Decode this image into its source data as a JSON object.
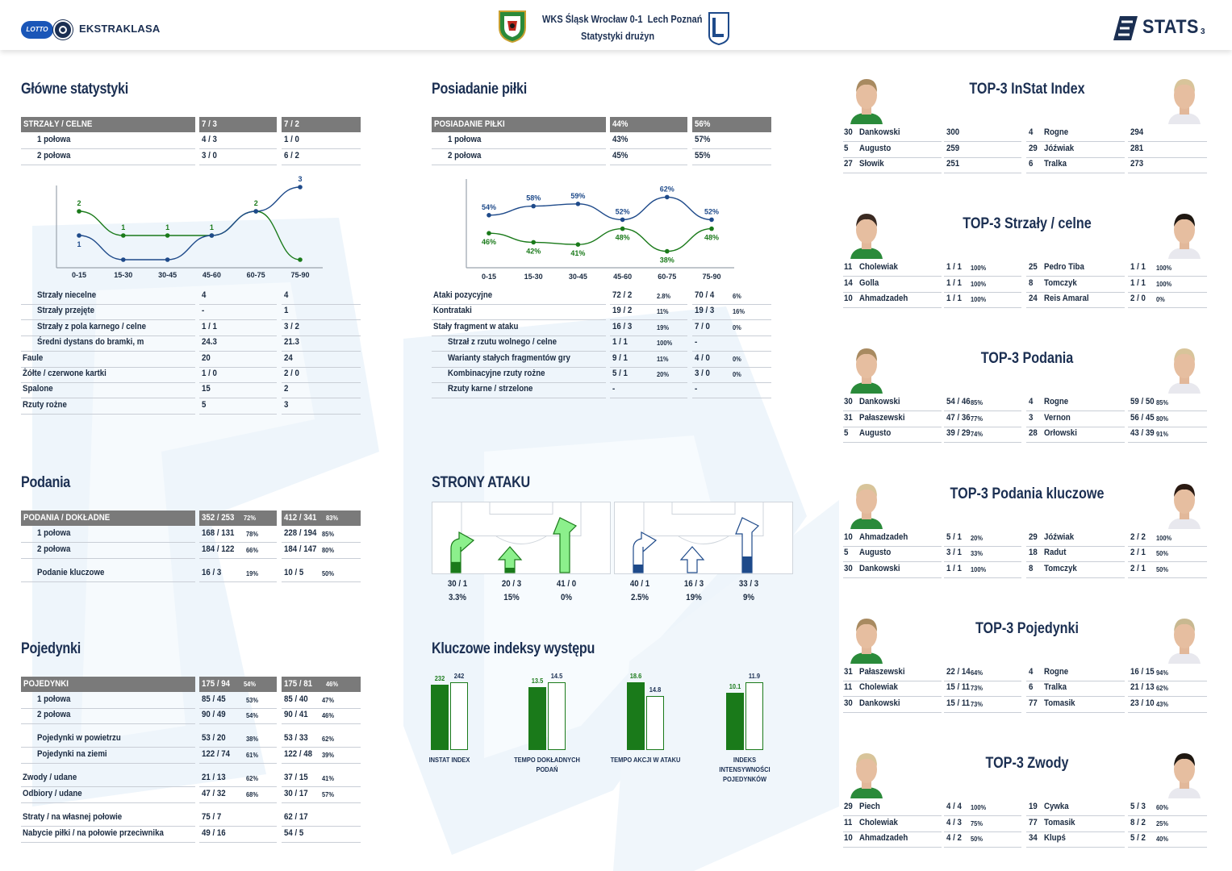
{
  "header": {
    "league_logo_text": "EKSTRAKLASA",
    "lotto_text": "LOTTO",
    "match_title": "WKS Śląsk Wrocław 0-1  Lech Poznań",
    "subtitle": "Statystyki drużyn",
    "stats_logo_text": "STATS",
    "page_number": "3"
  },
  "colors": {
    "home": "#1a7a1a",
    "away": "#1e4a8a",
    "header_gray": "#7a7a7a",
    "title": "#1b2f52"
  },
  "main_stats": {
    "title": "Główne statystyki",
    "header": {
      "label": "STRZAŁY / CELNE",
      "home": "7 / 3",
      "away": "7 / 2"
    },
    "halves": [
      {
        "label": "1 połowa",
        "home": "4 / 3",
        "away": "1 / 0"
      },
      {
        "label": "2 połowa",
        "home": "3 / 0",
        "away": "6 / 2"
      }
    ],
    "rows": [
      {
        "label": "Strzały niecelne",
        "home": "4",
        "away": "4",
        "indent": true
      },
      {
        "label": "Strzały przejęte",
        "home": "-",
        "away": "1",
        "indent": true
      },
      {
        "label": "Strzały z pola karnego / celne",
        "home": "1 / 1",
        "away": "3 / 2",
        "indent": true
      },
      {
        "label": "Średni dystans do bramki, m",
        "home": "24.3",
        "away": "21.3",
        "indent": true
      },
      {
        "label": "Faule",
        "home": "20",
        "away": "24",
        "indent": false
      },
      {
        "label": "Żółte / czerwone kartki",
        "home": "1 / 0",
        "away": "2 / 0",
        "indent": false
      },
      {
        "label": "Spalone",
        "home": "15",
        "away": "2",
        "indent": false
      },
      {
        "label": "Rzuty rożne",
        "home": "5",
        "away": "3",
        "indent": false
      }
    ]
  },
  "chart_data": [
    {
      "type": "line",
      "categories": [
        "0-15",
        "15-30",
        "30-45",
        "45-60",
        "60-75",
        "75-90"
      ],
      "series": [
        {
          "color": "#1a7a1a",
          "values": [
            2,
            1,
            1,
            1,
            2,
            0
          ]
        },
        {
          "color": "#1e4a8a",
          "values": [
            1,
            0,
            0,
            1,
            2,
            3
          ]
        }
      ],
      "data_labels": {
        "home": [
          "2",
          "1",
          "1",
          "1",
          "2",
          ""
        ],
        "away": [
          "1",
          "",
          "",
          "",
          "",
          "3"
        ]
      },
      "ylim": [
        0,
        3
      ]
    },
    {
      "type": "line",
      "categories": [
        "0-15",
        "15-30",
        "30-45",
        "45-60",
        "60-75",
        "75-90"
      ],
      "series": [
        {
          "color": "#1e4a8a",
          "values": [
            54,
            58,
            59,
            52,
            62,
            52
          ]
        },
        {
          "color": "#1a7a1a",
          "values": [
            46,
            42,
            41,
            48,
            38,
            48
          ]
        }
      ],
      "data_labels": {
        "away": [
          "54%",
          "58%",
          "59%",
          "52%",
          "62%",
          "52%"
        ],
        "home": [
          "46%",
          "42%",
          "41%",
          "48%",
          "38%",
          "48%"
        ]
      },
      "ylim": [
        35,
        65
      ]
    },
    {
      "type": "bar",
      "categories": [
        "INSTAT INDEX",
        "TEMPO DOKŁADNYCH PODAŃ",
        "TEMPO AKCJI W ATAKU",
        "INDEKS INTENSYWNOŚCI POJEDYNKÓW"
      ],
      "series": [
        {
          "color": "#1a7a1a",
          "values": [
            232,
            13.5,
            18.6,
            10.1
          ]
        },
        {
          "color": "#ffffff",
          "values": [
            242,
            14.5,
            14.8,
            11.9
          ]
        }
      ],
      "value_labels": {
        "home": [
          "232",
          "13.5",
          "18.6",
          "10.1"
        ],
        "away": [
          "242",
          "14.5",
          "14.8",
          "11.9"
        ]
      }
    }
  ],
  "possession": {
    "title": "Posiadanie piłki",
    "header": {
      "label": "POSIADANIE PIŁKI",
      "home": "44%",
      "away": "56%"
    },
    "halves": [
      {
        "label": "1 połowa",
        "home": "43%",
        "away": "57%"
      },
      {
        "label": "2 połowa",
        "home": "45%",
        "away": "55%"
      }
    ],
    "rows": [
      {
        "label": "Ataki pozycyjne",
        "home": "72 / 2",
        "home_pct": "2.8%",
        "away": "70 / 4",
        "away_pct": "6%",
        "indent": false
      },
      {
        "label": "Kontrataki",
        "home": "19 / 2",
        "home_pct": "11%",
        "away": "19 / 3",
        "away_pct": "16%",
        "indent": false
      },
      {
        "label": "Stały fragment w ataku",
        "home": "16 / 3",
        "home_pct": "19%",
        "away": "7 / 0",
        "away_pct": "0%",
        "indent": false
      },
      {
        "label": "Strzał z rzutu wolnego / celne",
        "home": "1 / 1",
        "home_pct": "100%",
        "away": "-",
        "away_pct": "",
        "indent": true
      },
      {
        "label": "Warianty stałych fragmentów gry",
        "home": "9 / 1",
        "home_pct": "11%",
        "away": "4 / 0",
        "away_pct": "0%",
        "indent": true
      },
      {
        "label": "Kombinacyjne rzuty rożne",
        "home": "5 / 1",
        "home_pct": "20%",
        "away": "3 / 0",
        "away_pct": "0%",
        "indent": true
      },
      {
        "label": "Rzuty karne / strzelone",
        "home": "-",
        "home_pct": "",
        "away": "-",
        "away_pct": "",
        "indent": true
      }
    ]
  },
  "passes": {
    "title": "Podania",
    "header": {
      "label": "PODANIA / DOKŁADNE",
      "home": "352 / 253",
      "home_pct": "72%",
      "away": "412 / 341",
      "away_pct": "83%"
    },
    "rows": [
      {
        "label": "1 połowa",
        "home": "168 / 131",
        "home_pct": "78%",
        "away": "228 / 194",
        "away_pct": "85%"
      },
      {
        "label": "2 połowa",
        "home": "184 / 122",
        "home_pct": "66%",
        "away": "184 / 147",
        "away_pct": "80%"
      },
      {
        "label": "Podanie kluczowe",
        "home": "16 / 3",
        "home_pct": "19%",
        "away": "10 / 5",
        "away_pct": "50%"
      }
    ]
  },
  "attack_sides": {
    "title": "STRONY ATAKU",
    "home": [
      {
        "value": "30 / 1",
        "pct": "3.3%",
        "level": 0.33
      },
      {
        "value": "20 / 3",
        "pct": "15%",
        "level": 0.15
      },
      {
        "value": "41 / 0",
        "pct": "0%",
        "level": 0.0
      }
    ],
    "away": [
      {
        "value": "40 / 1",
        "pct": "2.5%",
        "level": 0.25
      },
      {
        "value": "16 / 3",
        "pct": "19%",
        "level": 0.0
      },
      {
        "value": "33 / 3",
        "pct": "9%",
        "level": 0.5
      }
    ]
  },
  "duels": {
    "title": "Pojedynki",
    "header": {
      "label": "POJEDYNKI",
      "home": "175 / 94",
      "home_pct": "54%",
      "away": "175 / 81",
      "away_pct": "46%"
    },
    "rows": [
      {
        "label": "1 połowa",
        "home": "85 / 45",
        "home_pct": "53%",
        "away": "85 / 40",
        "away_pct": "47%",
        "indent": true
      },
      {
        "label": "2 połowa",
        "home": "90 / 49",
        "home_pct": "54%",
        "away": "90 / 41",
        "away_pct": "46%",
        "indent": true
      },
      {
        "label": "Pojedynki w powietrzu",
        "home": "53 / 20",
        "home_pct": "38%",
        "away": "53 / 33",
        "away_pct": "62%",
        "indent": true
      },
      {
        "label": "Pojedynki na ziemi",
        "home": "122 / 74",
        "home_pct": "61%",
        "away": "122 / 48",
        "away_pct": "39%",
        "indent": true
      },
      {
        "label": "Zwody / udane",
        "home": "21 / 13",
        "home_pct": "62%",
        "away": "37 / 15",
        "away_pct": "41%",
        "indent": false
      },
      {
        "label": "Odbiory / udane",
        "home": "47 / 32",
        "home_pct": "68%",
        "away": "30 / 17",
        "away_pct": "57%",
        "indent": false
      },
      {
        "label": "Straty / na własnej połowie",
        "home": "75 / 7",
        "home_pct": "",
        "away": "62 / 17",
        "away_pct": "",
        "indent": false
      },
      {
        "label": "Nabycie piłki / na połowie przeciwnika",
        "home": "49 / 16",
        "home_pct": "",
        "away": "54 / 5",
        "away_pct": "",
        "indent": false
      }
    ]
  },
  "key_indexes": {
    "title": "Kluczowe indeksy występu"
  },
  "top3": [
    {
      "title": "TOP-3 InStat Index",
      "home": [
        [
          "30",
          "Dankowski",
          "300",
          ""
        ],
        [
          "5",
          "Augusto",
          "259",
          ""
        ],
        [
          "27",
          "Słowik",
          "251",
          ""
        ]
      ],
      "away": [
        [
          "4",
          "Rogne",
          "294",
          ""
        ],
        [
          "29",
          "Jóźwiak",
          "281",
          ""
        ],
        [
          "6",
          "Tralka",
          "273",
          ""
        ]
      ]
    },
    {
      "title": "TOP-3 Strzały / celne",
      "home": [
        [
          "11",
          "Cholewiak",
          "1 / 1",
          "100%"
        ],
        [
          "14",
          "Golla",
          "1 / 1",
          "100%"
        ],
        [
          "10",
          "Ahmadzadeh",
          "1 / 1",
          "100%"
        ]
      ],
      "away": [
        [
          "25",
          "Pedro Tiba",
          "1 / 1",
          "100%"
        ],
        [
          "8",
          "Tomczyk",
          "1 / 1",
          "100%"
        ],
        [
          "24",
          "Reis Amaral",
          "2 / 0",
          "0%"
        ]
      ]
    },
    {
      "title": "TOP-3 Podania",
      "home": [
        [
          "30",
          "Dankowski",
          "54 / 46",
          "85%"
        ],
        [
          "31",
          "Pałaszewski",
          "47 / 36",
          "77%"
        ],
        [
          "5",
          "Augusto",
          "39 / 29",
          "74%"
        ]
      ],
      "away": [
        [
          "4",
          "Rogne",
          "59 / 50",
          "85%"
        ],
        [
          "3",
          "Vernon",
          "56 / 45",
          "80%"
        ],
        [
          "28",
          "Orłowski",
          "43 / 39",
          "91%"
        ]
      ]
    },
    {
      "title": "TOP-3 Podania kluczowe",
      "home": [
        [
          "10",
          "Ahmadzadeh",
          "5 / 1",
          "20%"
        ],
        [
          "5",
          "Augusto",
          "3 / 1",
          "33%"
        ],
        [
          "30",
          "Dankowski",
          "1 / 1",
          "100%"
        ]
      ],
      "away": [
        [
          "29",
          "Jóźwiak",
          "2 / 2",
          "100%"
        ],
        [
          "18",
          "Radut",
          "2 / 1",
          "50%"
        ],
        [
          "8",
          "Tomczyk",
          "2 / 1",
          "50%"
        ]
      ]
    },
    {
      "title": "TOP-3 Pojedynki",
      "home": [
        [
          "31",
          "Pałaszewski",
          "22 / 14",
          "64%"
        ],
        [
          "11",
          "Cholewiak",
          "15 / 11",
          "73%"
        ],
        [
          "30",
          "Dankowski",
          "15 / 11",
          "73%"
        ]
      ],
      "away": [
        [
          "4",
          "Rogne",
          "16 / 15",
          "94%"
        ],
        [
          "6",
          "Tralka",
          "21 / 13",
          "62%"
        ],
        [
          "77",
          "Tomasik",
          "23 / 10",
          "43%"
        ]
      ]
    },
    {
      "title": "TOP-3 Zwody",
      "home": [
        [
          "29",
          "Piech",
          "4 / 4",
          "100%"
        ],
        [
          "11",
          "Cholewiak",
          "4 / 3",
          "75%"
        ],
        [
          "10",
          "Ahmadzadeh",
          "4 / 2",
          "50%"
        ]
      ],
      "away": [
        [
          "19",
          "Cywka",
          "5 / 3",
          "60%"
        ],
        [
          "77",
          "Tomasik",
          "8 / 2",
          "25%"
        ],
        [
          "34",
          "Klupś",
          "5 / 2",
          "40%"
        ]
      ]
    }
  ]
}
